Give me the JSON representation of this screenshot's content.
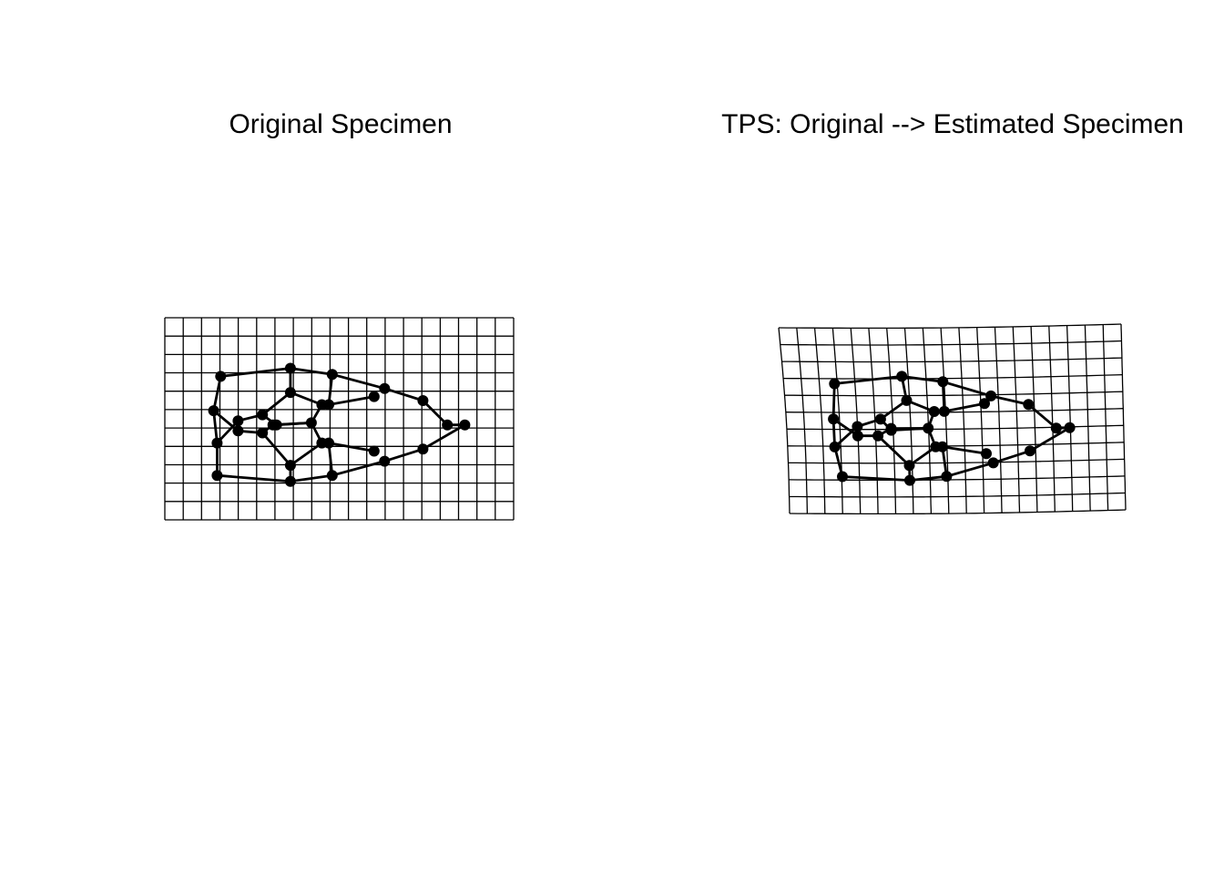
{
  "panels": [
    {
      "title": "Original Specimen"
    },
    {
      "title": "TPS: Original --> Estimated Specimen"
    }
  ],
  "grid": {
    "columns": 19,
    "rows": 11
  },
  "colors": {
    "ink": "#000000",
    "background": "#ffffff"
  },
  "landmarks_original": [
    [
      0.15,
      0.78
    ],
    [
      0.36,
      0.81
    ],
    [
      0.48,
      0.78
    ],
    [
      0.63,
      0.71
    ],
    [
      0.74,
      0.65
    ],
    [
      0.86,
      0.53
    ],
    [
      0.81,
      0.53
    ],
    [
      0.74,
      0.41
    ],
    [
      0.63,
      0.35
    ],
    [
      0.48,
      0.28
    ],
    [
      0.36,
      0.25
    ],
    [
      0.16,
      0.29
    ],
    [
      0.14,
      0.46
    ],
    [
      0.15,
      0.62
    ],
    [
      0.21,
      0.56
    ],
    [
      0.28,
      0.57
    ],
    [
      0.31,
      0.53
    ],
    [
      0.42,
      0.52
    ],
    [
      0.36,
      0.73
    ],
    [
      0.45,
      0.62
    ],
    [
      0.47,
      0.62
    ],
    [
      0.6,
      0.66
    ],
    [
      0.21,
      0.51
    ],
    [
      0.28,
      0.48
    ],
    [
      0.32,
      0.53
    ],
    [
      0.36,
      0.37
    ],
    [
      0.45,
      0.43
    ],
    [
      0.47,
      0.43
    ],
    [
      0.6,
      0.39
    ]
  ],
  "landmarks_estimated": [
    [
      0.16,
      0.8
    ],
    [
      0.36,
      0.82
    ],
    [
      0.47,
      0.8
    ],
    [
      0.61,
      0.73
    ],
    [
      0.72,
      0.67
    ],
    [
      0.84,
      0.55
    ],
    [
      0.8,
      0.55
    ],
    [
      0.72,
      0.42
    ],
    [
      0.61,
      0.37
    ],
    [
      0.47,
      0.29
    ],
    [
      0.35,
      0.26
    ],
    [
      0.15,
      0.3
    ],
    [
      0.14,
      0.49
    ],
    [
      0.14,
      0.64
    ],
    [
      0.21,
      0.58
    ],
    [
      0.27,
      0.58
    ],
    [
      0.31,
      0.54
    ],
    [
      0.42,
      0.54
    ],
    [
      0.36,
      0.74
    ],
    [
      0.44,
      0.64
    ],
    [
      0.46,
      0.64
    ],
    [
      0.59,
      0.68
    ],
    [
      0.21,
      0.53
    ],
    [
      0.28,
      0.49
    ],
    [
      0.31,
      0.55
    ],
    [
      0.36,
      0.39
    ],
    [
      0.44,
      0.45
    ],
    [
      0.47,
      0.45
    ],
    [
      0.59,
      0.41
    ]
  ],
  "links": [
    [
      0,
      1
    ],
    [
      1,
      2
    ],
    [
      2,
      3
    ],
    [
      3,
      4
    ],
    [
      4,
      5
    ],
    [
      5,
      6
    ],
    [
      6,
      7
    ],
    [
      7,
      8
    ],
    [
      8,
      9
    ],
    [
      9,
      10
    ],
    [
      10,
      11
    ],
    [
      11,
      12
    ],
    [
      12,
      13
    ],
    [
      13,
      0
    ],
    [
      12,
      14
    ],
    [
      14,
      15
    ],
    [
      15,
      16
    ],
    [
      16,
      17
    ],
    [
      17,
      19
    ],
    [
      19,
      18
    ],
    [
      18,
      15
    ],
    [
      19,
      20
    ],
    [
      20,
      21
    ],
    [
      13,
      22
    ],
    [
      22,
      23
    ],
    [
      23,
      24
    ],
    [
      24,
      17
    ],
    [
      17,
      26
    ],
    [
      26,
      25
    ],
    [
      25,
      23
    ],
    [
      26,
      27
    ],
    [
      27,
      28
    ],
    [
      1,
      18
    ],
    [
      2,
      20
    ],
    [
      9,
      27
    ],
    [
      10,
      25
    ]
  ]
}
